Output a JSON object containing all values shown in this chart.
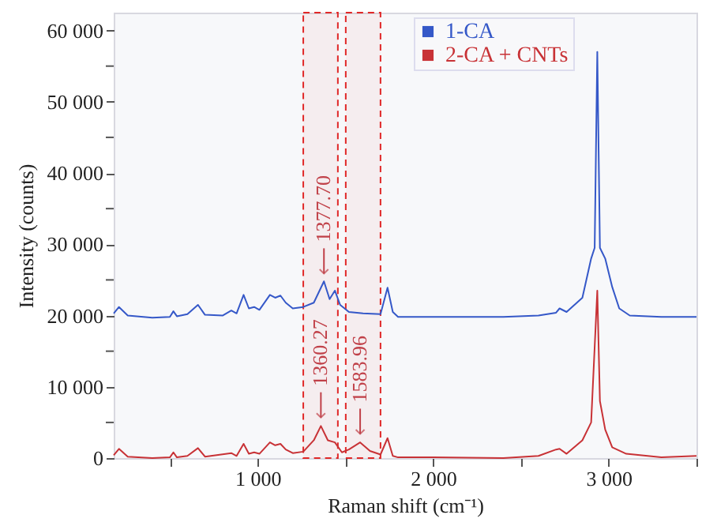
{
  "chart_data": {
    "type": "line",
    "xlabel": "Raman shift (cm⁻¹)",
    "ylabel": "Intensity (counts)",
    "xlim": [
      180,
      3500
    ],
    "ylim": [
      0,
      62500
    ],
    "xticks": [
      {
        "value": 500,
        "label": null
      },
      {
        "value": 1000,
        "label": "1 000"
      },
      {
        "value": 1500,
        "label": null
      },
      {
        "value": 2000,
        "label": "2 000"
      },
      {
        "value": 2500,
        "label": null
      },
      {
        "value": 3000,
        "label": "3 000"
      },
      {
        "value": 3500,
        "label": null
      }
    ],
    "yticks": [
      {
        "value": 0,
        "label": "0"
      },
      {
        "value": 5000,
        "label": null
      },
      {
        "value": 10000,
        "label": "10 000"
      },
      {
        "value": 15000,
        "label": null
      },
      {
        "value": 20000,
        "label": "20 000"
      },
      {
        "value": 25000,
        "label": null
      },
      {
        "value": 30000,
        "label": "30 000"
      },
      {
        "value": 35000,
        "label": null
      },
      {
        "value": 40000,
        "label": "40 000"
      },
      {
        "value": 45000,
        "label": null
      },
      {
        "value": 50000,
        "label": "50 000"
      },
      {
        "value": 55000,
        "label": null
      },
      {
        "value": 60000,
        "label": "60 000"
      }
    ],
    "grid": false,
    "legend": "top right",
    "marker": "none",
    "line_style": "solid",
    "series": [
      {
        "name": "1-CA",
        "color": "#3558c8",
        "x": [
          180,
          210,
          260,
          400,
          500,
          520,
          540,
          600,
          660,
          700,
          800,
          850,
          880,
          920,
          950,
          980,
          1010,
          1070,
          1100,
          1130,
          1160,
          1200,
          1260,
          1320,
          1377.7,
          1410,
          1440,
          1470,
          1520,
          1600,
          1700,
          1740,
          1770,
          1800,
          2000,
          2400,
          2600,
          2700,
          2720,
          2760,
          2850,
          2900,
          2920,
          2935,
          2950,
          2980,
          3020,
          3060,
          3120,
          3300,
          3500
        ],
        "values": [
          20300,
          21200,
          20000,
          19700,
          19800,
          20600,
          19900,
          20200,
          21500,
          20100,
          20000,
          20700,
          20300,
          22900,
          21000,
          21200,
          20800,
          22900,
          22500,
          22800,
          21800,
          21000,
          21200,
          21800,
          24800,
          22300,
          23500,
          21500,
          20500,
          20300,
          20200,
          23900,
          20500,
          19800,
          19800,
          19800,
          20000,
          20400,
          21000,
          20500,
          22500,
          28000,
          29500,
          57000,
          29500,
          28000,
          24000,
          21000,
          20000,
          19800,
          19800
        ]
      },
      {
        "name": "2-CA + CNTs",
        "color": "#c83236",
        "x": [
          180,
          210,
          260,
          400,
          500,
          520,
          540,
          600,
          660,
          700,
          850,
          880,
          920,
          950,
          980,
          1010,
          1070,
          1100,
          1130,
          1160,
          1200,
          1260,
          1320,
          1360.27,
          1400,
          1440,
          1480,
          1520,
          1583.96,
          1640,
          1700,
          1740,
          1770,
          1800,
          2000,
          2400,
          2600,
          2700,
          2720,
          2760,
          2850,
          2900,
          2935,
          2950,
          2980,
          3020,
          3100,
          3300,
          3500
        ],
        "values": [
          400,
          1300,
          200,
          0,
          100,
          800,
          100,
          300,
          1400,
          200,
          700,
          300,
          2000,
          600,
          800,
          600,
          2200,
          1800,
          2000,
          1200,
          700,
          900,
          2500,
          4500,
          2500,
          2200,
          800,
          1200,
          2200,
          1000,
          500,
          2800,
          300,
          100,
          100,
          0,
          300,
          1200,
          1300,
          600,
          2500,
          5000,
          23500,
          8000,
          4000,
          1500,
          600,
          100,
          300
        ]
      }
    ],
    "bands": [
      {
        "axis": "x",
        "from": 1260,
        "to": 1457,
        "color": "#e02828"
      },
      {
        "axis": "x",
        "from": 1502,
        "to": 1700,
        "color": "#e02828"
      }
    ],
    "annotations": [
      {
        "text": "1377.70",
        "x": 1377.7,
        "y": 25000
      },
      {
        "text": "1360.27",
        "x": 1360.27,
        "y": 4800
      },
      {
        "text": "1583.96",
        "x": 1583.96,
        "y": 2500
      }
    ]
  }
}
